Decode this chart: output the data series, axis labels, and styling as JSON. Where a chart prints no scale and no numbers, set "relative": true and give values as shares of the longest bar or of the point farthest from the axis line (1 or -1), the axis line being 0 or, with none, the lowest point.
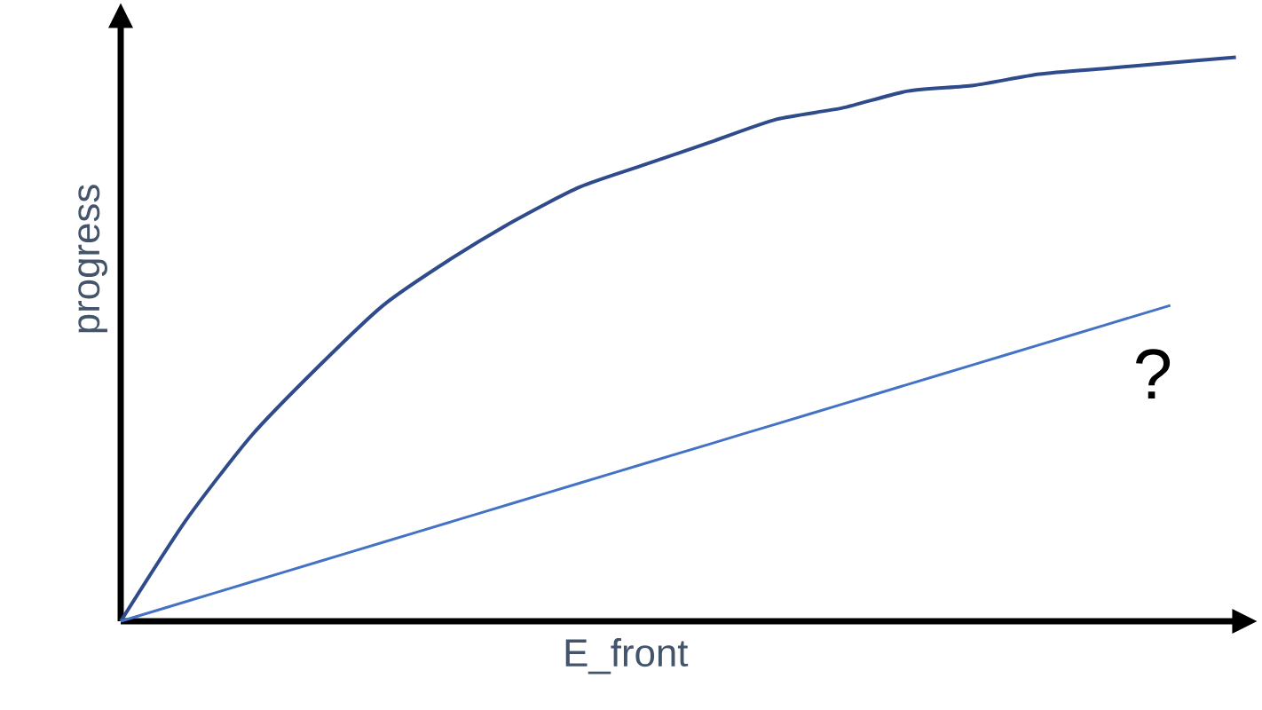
{
  "chart_data": {
    "type": "line",
    "relative": true,
    "xlabel": "E_front",
    "ylabel": "progress",
    "categories": [
      null,
      null,
      null,
      null,
      null,
      null,
      null,
      null,
      null,
      null,
      null,
      null,
      null,
      null,
      null,
      null,
      null,
      null
    ],
    "series": [
      {
        "color": "#2f4b8c",
        "values": [
          0,
          0.18,
          0.33,
          0.45,
          0.56,
          0.64,
          0.71,
          0.77,
          0.81,
          0.85,
          0.89,
          0.91,
          0.94,
          0.95,
          0.97,
          0.98,
          0.99,
          1
        ]
      },
      {
        "color": "#4472c4",
        "values": [
          0,
          0.035,
          0.07,
          0.105,
          0.14,
          0.175,
          0.21,
          0.245,
          0.28,
          0.315,
          0.35,
          0.385,
          0.42,
          0.455,
          0.49,
          0.525,
          0.56,
          null
        ]
      }
    ],
    "annotations": [
      "?"
    ]
  }
}
